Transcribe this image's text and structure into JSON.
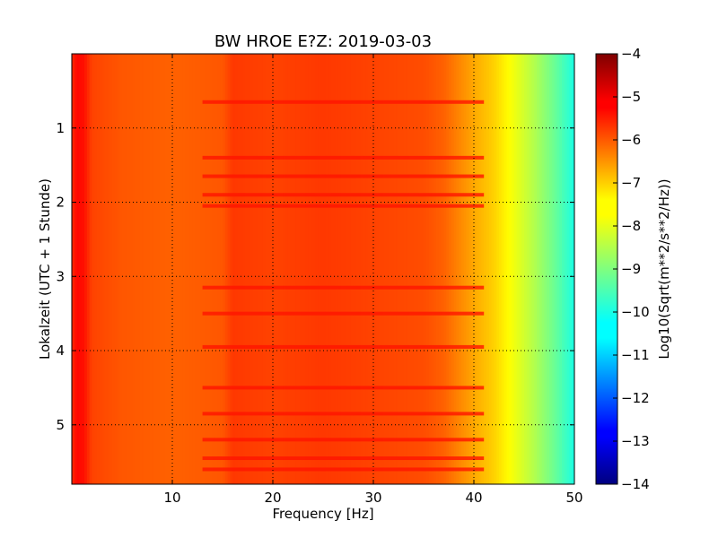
{
  "chart_data": {
    "type": "heatmap",
    "title": "BW HROE E?Z: 2019-03-03",
    "xlabel": "Frequency [Hz]",
    "ylabel": "Lokalzeit (UTC + 1 Stunde)",
    "colorbar_label": "Log10(Sqrt(m**2/s**2/Hz))",
    "x_range": [
      0,
      50
    ],
    "y_range": [
      0,
      5.8
    ],
    "y_inverted": true,
    "x_ticks": [
      10,
      20,
      30,
      40,
      50
    ],
    "y_ticks": [
      1,
      2,
      3,
      4,
      5
    ],
    "color_range": [
      -14,
      -4
    ],
    "colorbar_ticks": [
      -4,
      -5,
      -6,
      -7,
      -8,
      -9,
      -10,
      -11,
      -12,
      -13,
      -14
    ],
    "colormap": "jet",
    "grid": true,
    "frequency_profile": {
      "x": [
        0,
        0.5,
        1.2,
        2,
        5,
        10,
        15,
        16,
        20,
        25,
        30,
        35,
        37,
        40,
        42,
        44,
        46,
        48,
        50
      ],
      "values": [
        -5.7,
        -5.3,
        -5.4,
        -5.9,
        -6.1,
        -6.2,
        -6.1,
        -5.8,
        -5.9,
        -5.8,
        -5.9,
        -6.0,
        -6.2,
        -6.9,
        -7.3,
        -7.9,
        -8.5,
        -9.2,
        -10.0
      ]
    },
    "loud_time_bands": [
      0.65,
      1.4,
      1.65,
      1.9,
      2.05,
      3.15,
      3.5,
      3.95,
      4.5,
      4.85,
      5.2,
      5.45,
      5.6
    ]
  }
}
